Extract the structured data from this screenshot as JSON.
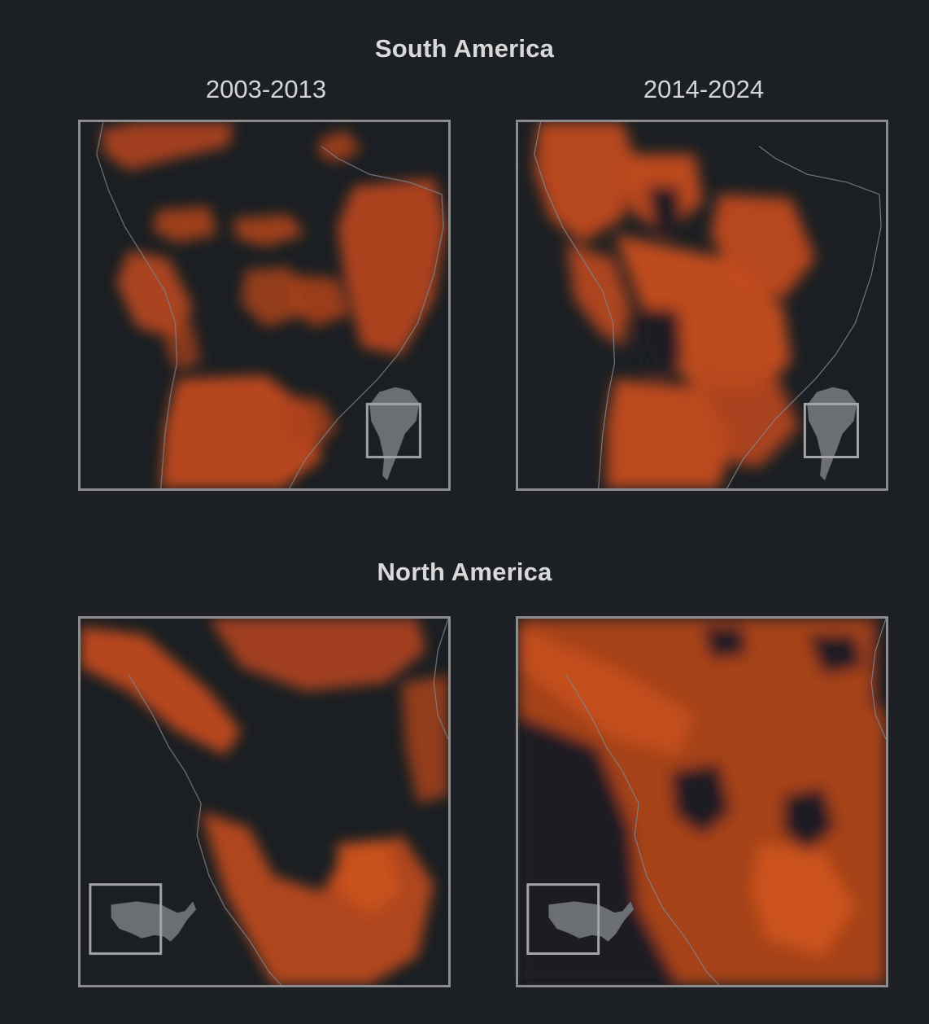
{
  "regions": [
    {
      "id": "south-america",
      "title": "South America",
      "periods": [
        {
          "label": "2003-2013",
          "intensity": "low"
        },
        {
          "label": "2014-2024",
          "intensity": "high"
        }
      ],
      "locator": "south-america-locator"
    },
    {
      "id": "north-america",
      "title": "North America",
      "periods": [
        {
          "label": "",
          "intensity": "low"
        },
        {
          "label": "",
          "intensity": "high"
        }
      ],
      "locator": "usa-locator"
    }
  ],
  "colors": {
    "background": "#1c2024",
    "heat": "#c04a1c",
    "heat_light": "#d9571f",
    "frame": "#8c8c8c",
    "locator_land": "#6b6e72"
  }
}
